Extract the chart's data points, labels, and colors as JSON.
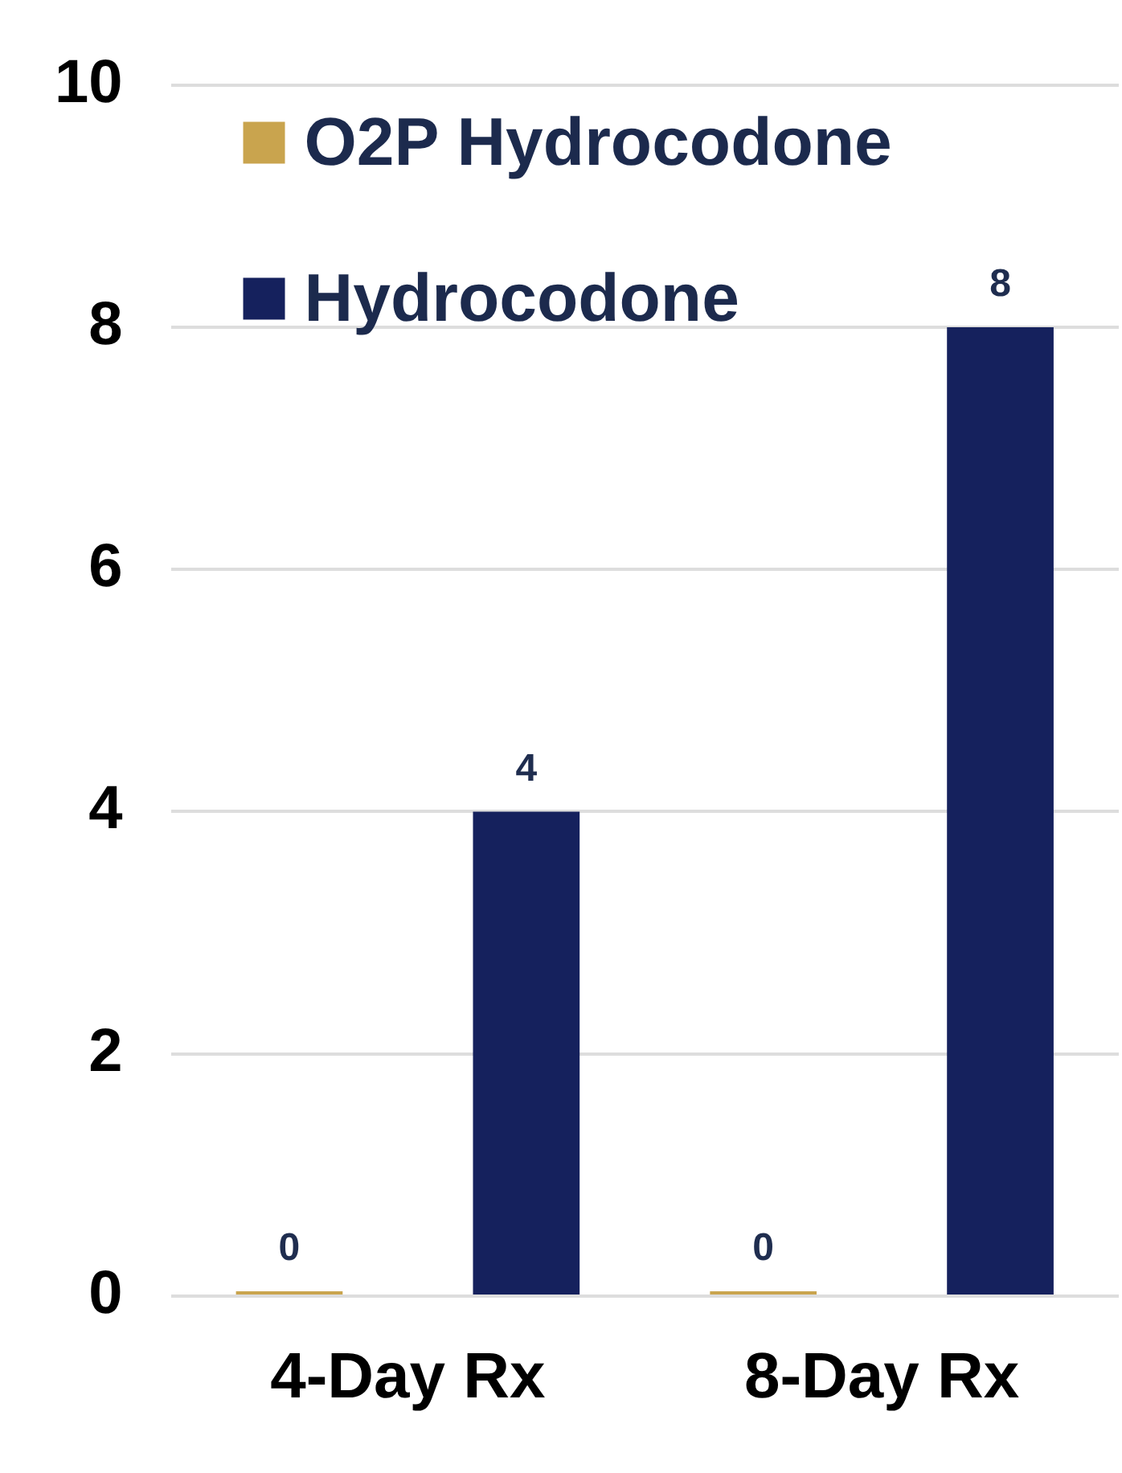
{
  "chart_data": {
    "type": "bar",
    "categories": [
      "4-Day Rx",
      "8-Day Rx"
    ],
    "series": [
      {
        "name": "O2P Hydrocodone",
        "color": "#c9a44e",
        "values": [
          0,
          0
        ]
      },
      {
        "name": "Hydrocodone",
        "color": "#15215d",
        "values": [
          4,
          8
        ]
      }
    ],
    "ylim": [
      0,
      10
    ],
    "yticks": [
      0,
      2,
      4,
      6,
      8,
      10
    ],
    "grid": "y",
    "legend": "top left",
    "data_labels": true
  }
}
